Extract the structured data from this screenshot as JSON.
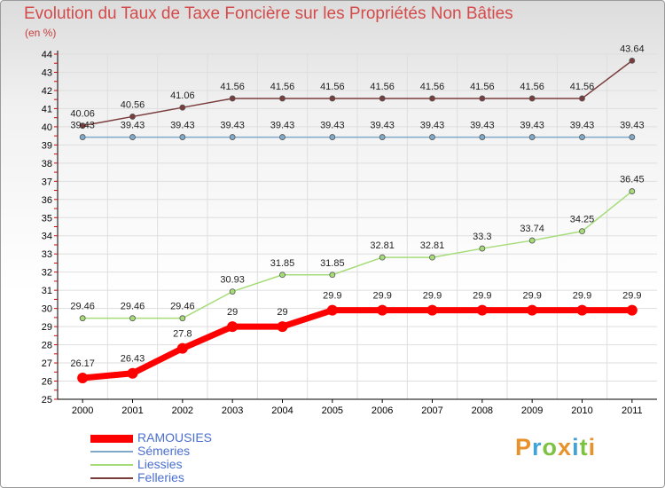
{
  "chart_data": {
    "type": "line",
    "title": "Evolution du Taux de Taxe Foncière sur les Propriétés Non Bâties",
    "ylabel": "(en %)",
    "xlabel": "",
    "categories": [
      "2000",
      "2001",
      "2002",
      "2003",
      "2004",
      "2005",
      "2006",
      "2007",
      "2008",
      "2009",
      "2010",
      "2011"
    ],
    "ylim": [
      25,
      44
    ],
    "yticks": [
      "25",
      "26",
      "27",
      "28",
      "29",
      "30",
      "31",
      "32",
      "33",
      "34",
      "35",
      "36",
      "37",
      "38",
      "39",
      "40",
      "41",
      "42",
      "43",
      "44"
    ],
    "series": [
      {
        "name": "RAMOUSIES",
        "color": "#ff0000",
        "labels": [
          "26.17",
          "26.43",
          "27.8",
          "29",
          "29",
          "29.9",
          "29.9",
          "29.9",
          "29.9",
          "29.9",
          "29.9",
          "29.9"
        ],
        "values": [
          26.17,
          26.43,
          27.8,
          29,
          29,
          29.9,
          29.9,
          29.9,
          29.9,
          29.9,
          29.9,
          29.9
        ]
      },
      {
        "name": "Sémeries",
        "color": "#7fa9c8",
        "labels": [
          "39.43",
          "39.43",
          "39.43",
          "39.43",
          "39.43",
          "39.43",
          "39.43",
          "39.43",
          "39.43",
          "39.43",
          "39.43",
          "39.43"
        ],
        "values": [
          39.43,
          39.43,
          39.43,
          39.43,
          39.43,
          39.43,
          39.43,
          39.43,
          39.43,
          39.43,
          39.43,
          39.43
        ]
      },
      {
        "name": "Liessies",
        "color": "#a5dc78",
        "labels": [
          "29.46",
          "29.46",
          "29.46",
          "30.93",
          "31.85",
          "31.85",
          "32.81",
          "32.81",
          "33.3",
          "33.74",
          "34.25",
          "36.45"
        ],
        "values": [
          29.46,
          29.46,
          29.46,
          30.93,
          31.85,
          31.85,
          32.81,
          32.81,
          33.3,
          33.74,
          34.25,
          36.45
        ]
      },
      {
        "name": "Felleries",
        "color": "#7a3d3d",
        "labels": [
          "40.06",
          "40.56",
          "41.06",
          "41.56",
          "41.56",
          "41.56",
          "41.56",
          "41.56",
          "41.56",
          "41.56",
          "41.56",
          "43.64"
        ],
        "values": [
          40.06,
          40.56,
          41.06,
          41.56,
          41.56,
          41.56,
          41.56,
          41.56,
          41.56,
          41.56,
          41.56,
          43.64
        ]
      }
    ]
  },
  "brand": {
    "letters": [
      "P",
      "r",
      "o",
      "x",
      "i",
      "t",
      "i"
    ],
    "colors": [
      "#e8922c",
      "#3fa3d9",
      "#7ec244",
      "#e8922c",
      "#3fa3d9",
      "#7ec244",
      "#e8922c"
    ]
  }
}
